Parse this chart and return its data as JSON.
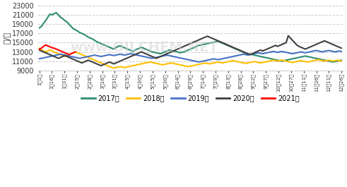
{
  "ylabel": "元/吨",
  "ylim": [
    9000,
    23000
  ],
  "yticks": [
    9000,
    11000,
    13000,
    15000,
    17000,
    19000,
    21000,
    23000
  ],
  "bg_color": "#ffffff",
  "grid_color": "#cccccc",
  "series": {
    "2017年": {
      "color": "#2d8b72",
      "linewidth": 1.5,
      "values": [
        18200,
        18500,
        19200,
        19800,
        20500,
        21200,
        21000,
        21300,
        21500,
        21000,
        20500,
        20200,
        19800,
        19500,
        19000,
        18500,
        18000,
        17800,
        17500,
        17200,
        17000,
        16800,
        16500,
        16200,
        16000,
        15800,
        15500,
        15200,
        15000,
        14800,
        14600,
        14400,
        14200,
        14000,
        13800,
        13600,
        13900,
        14200,
        14300,
        14100,
        13900,
        13700,
        13500,
        13300,
        13100,
        13400,
        13600,
        13800,
        14000,
        13800,
        13600,
        13400,
        13200,
        13000,
        12900,
        12800,
        12700,
        12600,
        12800,
        13000,
        13200,
        13400,
        13300,
        13200,
        13100,
        13000,
        12800,
        12900,
        13000,
        13200,
        13400,
        13600,
        13800,
        14000,
        14200,
        14400,
        14500,
        14600,
        14700,
        14800,
        14900,
        15000,
        15100,
        15200,
        15300,
        15100,
        14900,
        14700,
        14500,
        14300,
        14100,
        13900,
        13700,
        13500,
        13300,
        13100,
        12900,
        12700,
        12600,
        12500,
        12400,
        12300,
        12200,
        12100,
        12000,
        11900,
        11800,
        11700,
        11600,
        11500,
        11400,
        11300,
        11200,
        11100,
        11000,
        11100,
        11200,
        11300,
        11400,
        11500,
        11600,
        11700,
        11800,
        11900,
        12000,
        12100,
        12000,
        11900,
        11800,
        11700,
        11600,
        11500,
        11400,
        11300,
        11200,
        11100,
        11000,
        10900,
        10800,
        10900,
        11000,
        11100,
        11200
      ]
    },
    "2018年": {
      "color": "#ffc000",
      "linewidth": 1.5,
      "values": [
        13800,
        13500,
        13200,
        13000,
        13200,
        13400,
        13200,
        13000,
        12800,
        12600,
        12400,
        12200,
        12000,
        12200,
        12400,
        12600,
        12800,
        13000,
        12800,
        12600,
        12400,
        12200,
        12000,
        11800,
        11600,
        11400,
        11200,
        11000,
        10800,
        10600,
        10400,
        10200,
        10000,
        9800,
        9600,
        9500,
        9600,
        9700,
        9800,
        9700,
        9600,
        9700,
        9800,
        9900,
        10000,
        10100,
        10200,
        10300,
        10400,
        10500,
        10600,
        10700,
        10800,
        10700,
        10600,
        10500,
        10400,
        10300,
        10200,
        10300,
        10400,
        10500,
        10600,
        10500,
        10400,
        10300,
        10200,
        10100,
        10000,
        9900,
        9800,
        9900,
        10000,
        10100,
        10200,
        10300,
        10400,
        10500,
        10600,
        10500,
        10400,
        10500,
        10600,
        10700,
        10800,
        10700,
        10600,
        10700,
        10800,
        10900,
        11000,
        11100,
        11000,
        10900,
        10800,
        10700,
        10600,
        10500,
        10600,
        10700,
        10800,
        10900,
        10800,
        10700,
        10600,
        10700,
        10800,
        10900,
        11000,
        11100,
        11200,
        11100,
        11000,
        11100,
        11200,
        11100,
        11000,
        10900,
        10800,
        10700,
        10800,
        10900,
        11000,
        11100,
        11000,
        10900,
        10800,
        10900,
        11000,
        11100,
        11200,
        11300,
        11200,
        11100,
        11000,
        11100,
        11200,
        11100,
        11000,
        11100,
        11200,
        11100,
        11000
      ]
    },
    "2019年": {
      "color": "#4472c4",
      "linewidth": 1.5,
      "values": [
        11500,
        11600,
        11700,
        11800,
        11900,
        12000,
        12100,
        12200,
        12300,
        12400,
        12500,
        12400,
        12300,
        12200,
        12100,
        12000,
        11900,
        11800,
        11700,
        11600,
        11700,
        11800,
        11900,
        12000,
        12100,
        12200,
        12300,
        12200,
        12100,
        12000,
        12100,
        12200,
        12300,
        12400,
        12300,
        12200,
        12300,
        12400,
        12500,
        12400,
        12300,
        12400,
        12500,
        12600,
        12500,
        12400,
        12300,
        12200,
        12100,
        12000,
        11900,
        11800,
        11700,
        11600,
        11700,
        11800,
        11900,
        12000,
        12100,
        12200,
        12300,
        12200,
        12100,
        12000,
        11900,
        11800,
        11700,
        11600,
        11500,
        11400,
        11300,
        11200,
        11100,
        11000,
        10900,
        10800,
        10900,
        11000,
        11100,
        11200,
        11300,
        11400,
        11500,
        11400,
        11300,
        11400,
        11500,
        11600,
        11700,
        11800,
        11900,
        12000,
        12100,
        12200,
        12300,
        12400,
        12500,
        12400,
        12300,
        12400,
        12500,
        12600,
        12700,
        12800,
        12700,
        12600,
        12700,
        12800,
        12900,
        13000,
        13100,
        13000,
        12900,
        13000,
        13100,
        13000,
        12900,
        12800,
        12700,
        12600,
        12700,
        12800,
        12900,
        13000,
        12900,
        12800,
        12900,
        13000,
        13100,
        13200,
        13300,
        13200,
        13100,
        13000,
        13100,
        13200,
        13300,
        13200,
        13100,
        13000,
        13100,
        13200,
        13100
      ]
    },
    "2020年": {
      "color": "#404040",
      "linewidth": 1.5,
      "values": [
        13400,
        13200,
        13000,
        12800,
        12600,
        12400,
        12200,
        12000,
        11800,
        11600,
        11800,
        12000,
        12200,
        12000,
        11800,
        11600,
        11400,
        11200,
        11000,
        10800,
        10600,
        10800,
        11000,
        11200,
        11000,
        10800,
        10600,
        10400,
        10200,
        10000,
        10200,
        10400,
        10600,
        10800,
        10600,
        10400,
        10600,
        10800,
        11000,
        11200,
        11400,
        11600,
        11800,
        12000,
        12200,
        12400,
        12600,
        12800,
        13000,
        12800,
        12600,
        12400,
        12200,
        12000,
        11800,
        11600,
        11800,
        12000,
        12200,
        12400,
        12600,
        12800,
        13000,
        13200,
        13400,
        13600,
        13800,
        14000,
        14200,
        14400,
        14600,
        14800,
        15000,
        15200,
        15400,
        15600,
        15800,
        16000,
        16200,
        16400,
        16200,
        16000,
        15800,
        15600,
        15400,
        15200,
        15000,
        14800,
        14600,
        14400,
        14200,
        14000,
        13800,
        13600,
        13400,
        13200,
        13000,
        12800,
        12600,
        12400,
        12600,
        12800,
        13000,
        13200,
        13400,
        13200,
        13400,
        13600,
        13800,
        14000,
        14200,
        14400,
        14200,
        14400,
        14600,
        14800,
        15000,
        16500,
        16000,
        15500,
        15000,
        14500,
        14200,
        14000,
        13800,
        13600,
        13800,
        14000,
        14200,
        14400,
        14600,
        14800,
        15000,
        15200,
        15400,
        15200,
        15000,
        14800,
        14600,
        14400,
        14200,
        14000,
        13800
      ]
    },
    "2021年": {
      "color": "#ff0000",
      "linewidth": 1.5,
      "values": [
        13600,
        13800,
        14200,
        14500,
        14300,
        14100,
        13900,
        13800,
        13600,
        13400,
        13200,
        13000,
        12800,
        12600,
        12400,
        12600,
        12800,
        13000,
        null,
        null,
        null,
        null,
        null,
        null,
        null,
        null,
        null,
        null,
        null,
        null,
        null,
        null,
        null,
        null,
        null,
        null,
        null,
        null,
        null,
        null,
        null,
        null,
        null,
        null,
        null,
        null,
        null,
        null,
        null,
        null,
        null,
        null,
        null,
        null,
        null,
        null,
        null,
        null,
        null,
        null,
        null,
        null,
        null,
        null,
        null,
        null,
        null,
        null,
        null,
        null,
        null,
        null,
        null,
        null,
        null,
        null,
        null,
        null,
        null,
        null,
        null,
        null,
        null,
        null,
        null,
        null,
        null,
        null,
        null,
        null,
        null,
        null,
        null,
        null,
        null,
        null,
        null,
        null,
        null,
        null,
        null,
        null,
        null,
        null,
        null,
        null,
        null,
        null,
        null,
        null,
        null,
        null,
        null,
        null,
        null,
        null,
        null,
        null,
        null,
        null,
        null,
        null,
        null,
        null,
        null,
        null,
        null,
        null,
        null,
        null,
        null,
        null,
        null,
        null,
        null,
        null,
        null,
        null,
        null,
        null,
        null,
        null,
        null
      ]
    }
  },
  "xtick_labels": [
    "1月1日",
    "1月16日",
    "1月31日",
    "2月15日",
    "2月28日",
    "3月16日",
    "3月31日",
    "4月15日",
    "4月30日",
    "5月15日",
    "5月30日",
    "6月14日",
    "6月29日",
    "7月14日",
    "7月29日",
    "8月13日",
    "8月28日",
    "9月12日",
    "9月27日",
    "10月12日",
    "10月27日",
    "11月11日",
    "11月26日",
    "12月11日",
    "12月26日"
  ],
  "n_points": 143,
  "legend_labels": [
    "2017年",
    "2018年",
    "2019年",
    "2020年",
    "2021年"
  ],
  "legend_colors": [
    "#2d8b72",
    "#ffc000",
    "#4472c4",
    "#404040",
    "#ff0000"
  ],
  "watermark": "www.OILCHEM.NET"
}
